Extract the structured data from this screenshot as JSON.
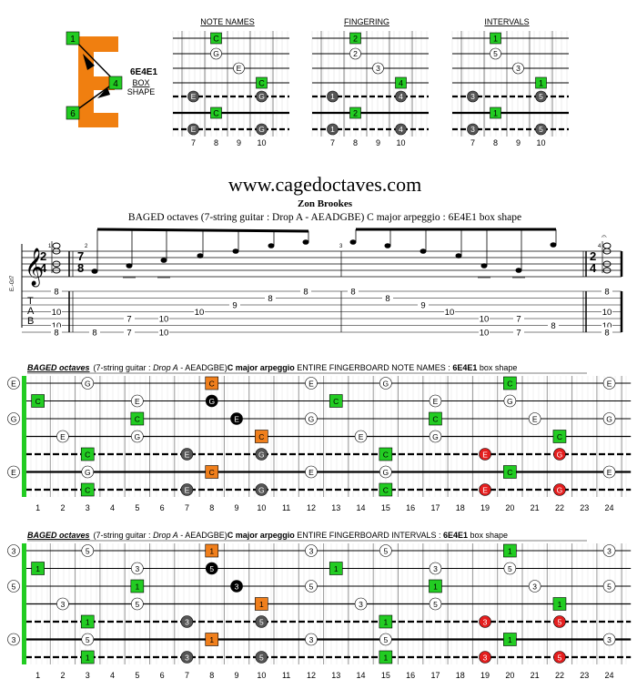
{
  "logo": {
    "marks": [
      "1",
      "4",
      "6"
    ]
  },
  "box_info": {
    "code": "6E4E1",
    "line1": "BOX",
    "line2": "SHAPE"
  },
  "mini_diagrams": {
    "frets": [
      "7",
      "8",
      "9",
      "10"
    ],
    "panels": [
      {
        "title": "NOTE NAMES",
        "labels": {
          "g1": "C",
          "w2": "G",
          "w3": "E",
          "g4": "C",
          "k6": "E",
          "k6b": "G",
          "g7": "C",
          "k8": "E",
          "k8b": "G"
        }
      },
      {
        "title": "FINGERING",
        "labels": {
          "g1": "2",
          "w2": "2",
          "w3": "3",
          "g4": "4",
          "k6": "1",
          "k6b": "4",
          "g7": "2",
          "k8": "1",
          "k8b": "4"
        }
      },
      {
        "title": "INTERVALS",
        "labels": {
          "g1": "1",
          "w2": "5",
          "w3": "3",
          "g4": "1",
          "k6": "3",
          "k6b": "5",
          "g7": "1",
          "k8": "3",
          "k8b": "5"
        }
      }
    ]
  },
  "header": {
    "site": "www.cagedoctaves.com",
    "author": "Zon Brookes",
    "subtitle": "BAGED octaves (7-string guitar : Drop A - AEADGBE) C major arpeggio : 6E4E1 box shape"
  },
  "score": {
    "tab_letters": [
      "T",
      "A",
      "B"
    ],
    "side_label": "E.-Gt7",
    "time_sig": {
      "top": "2",
      "bottom": "4"
    },
    "time_sig2": {
      "top": "7",
      "bottom": "8"
    },
    "bar_numbers": [
      "1",
      "2",
      "3",
      "4"
    ],
    "tab_numbers": {
      "chord1": [
        "8",
        "10",
        "10",
        "8"
      ],
      "m2": [
        "8",
        "7",
        "7",
        "10",
        "10",
        "10",
        "9",
        "8",
        "8"
      ],
      "m3": [
        "8",
        "8",
        "9",
        "10",
        "10",
        "10",
        "7",
        "7",
        "8"
      ],
      "chord4": [
        "8",
        "10",
        "10",
        "8"
      ]
    }
  },
  "fretboard1": {
    "title_bold_italic": "BAGED octaves",
    "title_rest1": "(7-string guitar : ",
    "title_italic": "Drop A",
    "title_rest2": " - AEADGBE)",
    "title_bold1": "C major arpeggio",
    "title_rest3": "  ENTIRE FINGERBOARD  NOTE NAMES  : ",
    "title_bold2": "6E4E1",
    "title_rest4": " box shape",
    "fret_numbers": [
      "1",
      "2",
      "3",
      "4",
      "5",
      "6",
      "7",
      "8",
      "9",
      "10",
      "11",
      "12",
      "13",
      "14",
      "15",
      "16",
      "17",
      "18",
      "19",
      "20",
      "21",
      "22",
      "23",
      "24"
    ]
  },
  "fretboard2": {
    "title_bold_italic": "BAGED octaves",
    "title_rest1": "(7-string guitar : ",
    "title_italic": "Drop A",
    "title_rest2": " - AEADGBE)",
    "title_bold1": "C major arpeggio",
    "title_rest3": "  ENTIRE FINGERBOARD  INTERVALS  : ",
    "title_bold2": "6E4E1",
    "title_rest4": " box shape",
    "fret_numbers": [
      "1",
      "2",
      "3",
      "4",
      "5",
      "6",
      "7",
      "8",
      "9",
      "10",
      "11",
      "12",
      "13",
      "14",
      "15",
      "16",
      "17",
      "18",
      "19",
      "20",
      "21",
      "22",
      "23",
      "24"
    ]
  },
  "notes": [
    {
      "s": 1,
      "f": 0,
      "t": "w",
      "n": "E",
      "i": "3"
    },
    {
      "s": 1,
      "f": 3,
      "t": "w",
      "n": "G",
      "i": "5"
    },
    {
      "s": 1,
      "f": 8,
      "t": "o",
      "n": "C",
      "i": "1"
    },
    {
      "s": 1,
      "f": 12,
      "t": "w",
      "n": "E",
      "i": "3"
    },
    {
      "s": 1,
      "f": 15,
      "t": "w",
      "n": "G",
      "i": "5"
    },
    {
      "s": 1,
      "f": 20,
      "t": "g",
      "n": "C",
      "i": "1"
    },
    {
      "s": 1,
      "f": 24,
      "t": "w",
      "n": "E",
      "i": "3"
    },
    {
      "s": 2,
      "f": 1,
      "t": "g",
      "n": "C",
      "i": "1"
    },
    {
      "s": 2,
      "f": 5,
      "t": "w",
      "n": "E",
      "i": "3"
    },
    {
      "s": 2,
      "f": 8,
      "t": "b",
      "n": "G",
      "i": "5"
    },
    {
      "s": 2,
      "f": 13,
      "t": "g",
      "n": "C",
      "i": "1"
    },
    {
      "s": 2,
      "f": 17,
      "t": "w",
      "n": "E",
      "i": "3"
    },
    {
      "s": 2,
      "f": 20,
      "t": "w",
      "n": "G",
      "i": "5"
    },
    {
      "s": 3,
      "f": 0,
      "t": "w",
      "n": "G",
      "i": "5"
    },
    {
      "s": 3,
      "f": 5,
      "t": "g",
      "n": "C",
      "i": "1"
    },
    {
      "s": 3,
      "f": 9,
      "t": "b",
      "n": "E",
      "i": "3"
    },
    {
      "s": 3,
      "f": 12,
      "t": "w",
      "n": "G",
      "i": "5"
    },
    {
      "s": 3,
      "f": 17,
      "t": "g",
      "n": "C",
      "i": "1"
    },
    {
      "s": 3,
      "f": 21,
      "t": "w",
      "n": "E",
      "i": "3"
    },
    {
      "s": 3,
      "f": 24,
      "t": "w",
      "n": "G",
      "i": "5"
    },
    {
      "s": 4,
      "f": 2,
      "t": "w",
      "n": "E",
      "i": "3"
    },
    {
      "s": 4,
      "f": 5,
      "t": "w",
      "n": "G",
      "i": "5"
    },
    {
      "s": 4,
      "f": 10,
      "t": "o",
      "n": "C",
      "i": "1"
    },
    {
      "s": 4,
      "f": 14,
      "t": "w",
      "n": "E",
      "i": "3"
    },
    {
      "s": 4,
      "f": 17,
      "t": "w",
      "n": "G",
      "i": "5"
    },
    {
      "s": 4,
      "f": 22,
      "t": "g",
      "n": "C",
      "i": "1"
    },
    {
      "s": 5,
      "f": 3,
      "t": "g",
      "n": "C",
      "i": "1"
    },
    {
      "s": 5,
      "f": 7,
      "t": "d",
      "n": "E",
      "i": "3"
    },
    {
      "s": 5,
      "f": 10,
      "t": "d",
      "n": "G",
      "i": "5"
    },
    {
      "s": 5,
      "f": 15,
      "t": "g",
      "n": "C",
      "i": "1"
    },
    {
      "s": 5,
      "f": 19,
      "t": "r",
      "n": "E",
      "i": "3"
    },
    {
      "s": 5,
      "f": 22,
      "t": "r",
      "n": "G",
      "i": "5"
    },
    {
      "s": 6,
      "f": 0,
      "t": "w",
      "n": "E",
      "i": "3"
    },
    {
      "s": 6,
      "f": 3,
      "t": "w",
      "n": "G",
      "i": "5"
    },
    {
      "s": 6,
      "f": 8,
      "t": "o",
      "n": "C",
      "i": "1"
    },
    {
      "s": 6,
      "f": 12,
      "t": "w",
      "n": "E",
      "i": "3"
    },
    {
      "s": 6,
      "f": 15,
      "t": "w",
      "n": "G",
      "i": "5"
    },
    {
      "s": 6,
      "f": 20,
      "t": "g",
      "n": "C",
      "i": "1"
    },
    {
      "s": 6,
      "f": 24,
      "t": "w",
      "n": "E",
      "i": "3"
    },
    {
      "s": 7,
      "f": 3,
      "t": "g",
      "n": "C",
      "i": "1"
    },
    {
      "s": 7,
      "f": 7,
      "t": "d",
      "n": "E",
      "i": "3"
    },
    {
      "s": 7,
      "f": 10,
      "t": "d",
      "n": "G",
      "i": "5"
    },
    {
      "s": 7,
      "f": 15,
      "t": "g",
      "n": "C",
      "i": "1"
    },
    {
      "s": 7,
      "f": 19,
      "t": "r",
      "n": "E",
      "i": "3"
    },
    {
      "s": 7,
      "f": 22,
      "t": "r",
      "n": "G",
      "i": "5"
    }
  ],
  "colors": {
    "green": "#22cc22",
    "orange": "#f07f1c",
    "red": "#e41e1e",
    "dark": "#555555",
    "black": "#000000",
    "logo": "#f07f10"
  }
}
